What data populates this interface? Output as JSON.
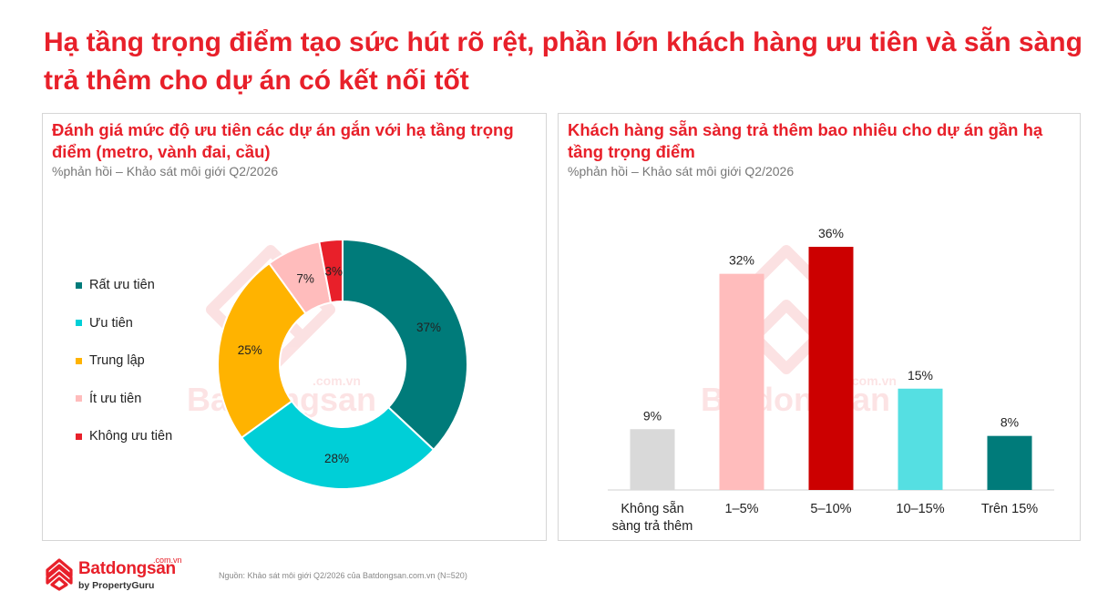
{
  "title": "Hạ tầng trọng điểm tạo sức hút rõ rệt, phần lớn khách hàng ưu tiên và sẵn sàng trả thêm cho dự án có kết nối tốt",
  "watermark": {
    "brand": "Batdongsan",
    "domain": ".com.vn"
  },
  "footer": {
    "logo_text": "Batdongsan",
    "logo_domain": ".com.vn",
    "logo_by": "by PropertyGuru",
    "source": "Nguồn: Khảo sát môi giới Q2/2026 của Batdongsan.com.vn (N=520)"
  },
  "colors": {
    "title_red": "#e8202a",
    "teal": "#007b7a",
    "cyan": "#00cfd7",
    "yellow": "#ffb300",
    "pink": "#ffbcbc",
    "red": "#e8202a",
    "grey": "#d9d9d9",
    "dark_red": "#cc0000",
    "light_cyan": "#55dfe2"
  },
  "chart_data": [
    {
      "type": "pie",
      "title": "Đánh giá mức độ ưu tiên các dự án gắn với hạ tầng trọng điểm (metro, vành đai, cầu)",
      "subtitle": "%phản hồi – Khảo sát môi giới Q2/2026",
      "donut": true,
      "legend_position": "left",
      "labels": [
        "Rất ưu tiên",
        "Ưu tiên",
        "Trung lập",
        "Ít ưu tiên",
        "Không ưu tiên"
      ],
      "values": [
        37,
        28,
        25,
        7,
        3
      ],
      "data_labels": [
        "37%",
        "28%",
        "25%",
        "7%",
        "3%"
      ],
      "colors": [
        "#007b7a",
        "#00cfd7",
        "#ffb300",
        "#ffbcbc",
        "#e8202a"
      ]
    },
    {
      "type": "bar",
      "title": "Khách hàng sẵn sàng trả thêm bao nhiêu cho dự án gần hạ tầng trọng điểm",
      "subtitle": "%phản hồi – Khảo sát môi giới Q2/2026",
      "categories": [
        "Không sẵn sàng trả thêm",
        "1–5%",
        "5–10%",
        "10–15%",
        "Trên 15%"
      ],
      "category_lines": [
        [
          "Không sẵn",
          "sàng trả thêm"
        ],
        [
          "1–5%"
        ],
        [
          "5–10%"
        ],
        [
          "10–15%"
        ],
        [
          "Trên 15%"
        ]
      ],
      "values": [
        9,
        32,
        36,
        15,
        8
      ],
      "data_labels": [
        "9%",
        "32%",
        "36%",
        "15%",
        "8%"
      ],
      "colors": [
        "#d9d9d9",
        "#ffbcbc",
        "#cc0000",
        "#55dfe2",
        "#007b7a"
      ],
      "ylim": [
        0,
        36
      ],
      "grid": false
    }
  ]
}
